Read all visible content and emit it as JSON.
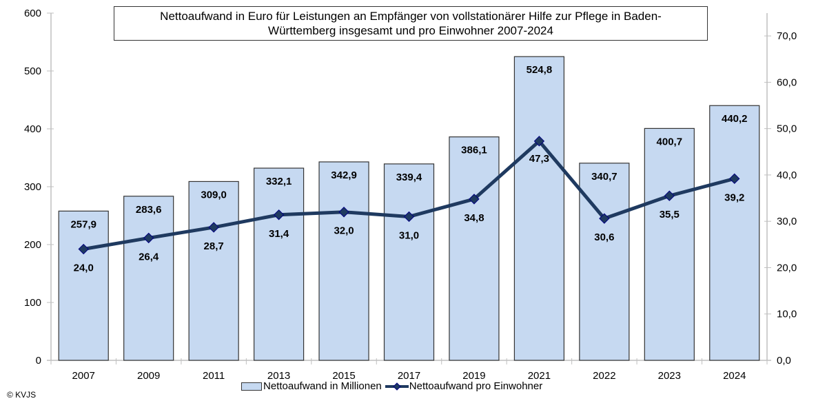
{
  "chart_data": {
    "type": "bar+line",
    "title": "Nettoaufwand in Euro für Leistungen an Empfänger von vollstationärer Hilfe zur Pflege in Baden-Württemberg insgesamt und pro Einwohner 2007-2024",
    "title_lines": [
      "Nettoaufwand in Euro für Leistungen an Empfänger von vollstationärer Hilfe zur Pflege in Baden-",
      "Württemberg insgesamt und pro Einwohner 2007-2024"
    ],
    "categories": [
      "2007",
      "2009",
      "2011",
      "2013",
      "2015",
      "2017",
      "2019",
      "2021",
      "2022",
      "2023",
      "2024"
    ],
    "series": [
      {
        "name": "Nettoaufwand in Millionen",
        "type": "bar",
        "axis": "left",
        "values": [
          257.9,
          283.6,
          309.0,
          332.1,
          342.9,
          339.4,
          386.1,
          524.8,
          340.7,
          400.7,
          440.2
        ],
        "labels": [
          "257,9",
          "283,6",
          "309,0",
          "332,1",
          "342,9",
          "339,4",
          "386,1",
          "524,8",
          "340,7",
          "400,7",
          "440,2"
        ],
        "color": "#c6d9f1",
        "border": "#333333"
      },
      {
        "name": "Nettoaufwand pro Einwohner",
        "type": "line",
        "axis": "right",
        "values": [
          24.0,
          26.4,
          28.7,
          31.4,
          32.0,
          31.0,
          34.8,
          47.3,
          30.6,
          35.5,
          39.2
        ],
        "labels": [
          "24,0",
          "26,4",
          "28,7",
          "31,4",
          "32,0",
          "31,0",
          "34,8",
          "47,3",
          "30,6",
          "35,5",
          "39,2"
        ],
        "color": "#1f3a60",
        "marker": "diamond"
      }
    ],
    "y_left": {
      "min": 0,
      "max": 600,
      "ticks": [
        "0",
        "100",
        "200",
        "300",
        "400",
        "500",
        "600"
      ]
    },
    "y_right": {
      "min": 0,
      "max": 75,
      "ticks": [
        "0,0",
        "10,0",
        "20,0",
        "30,0",
        "40,0",
        "50,0",
        "60,0",
        "70,0"
      ]
    },
    "grid": false,
    "legend_position": "bottom"
  },
  "copyright": "© KVJS"
}
